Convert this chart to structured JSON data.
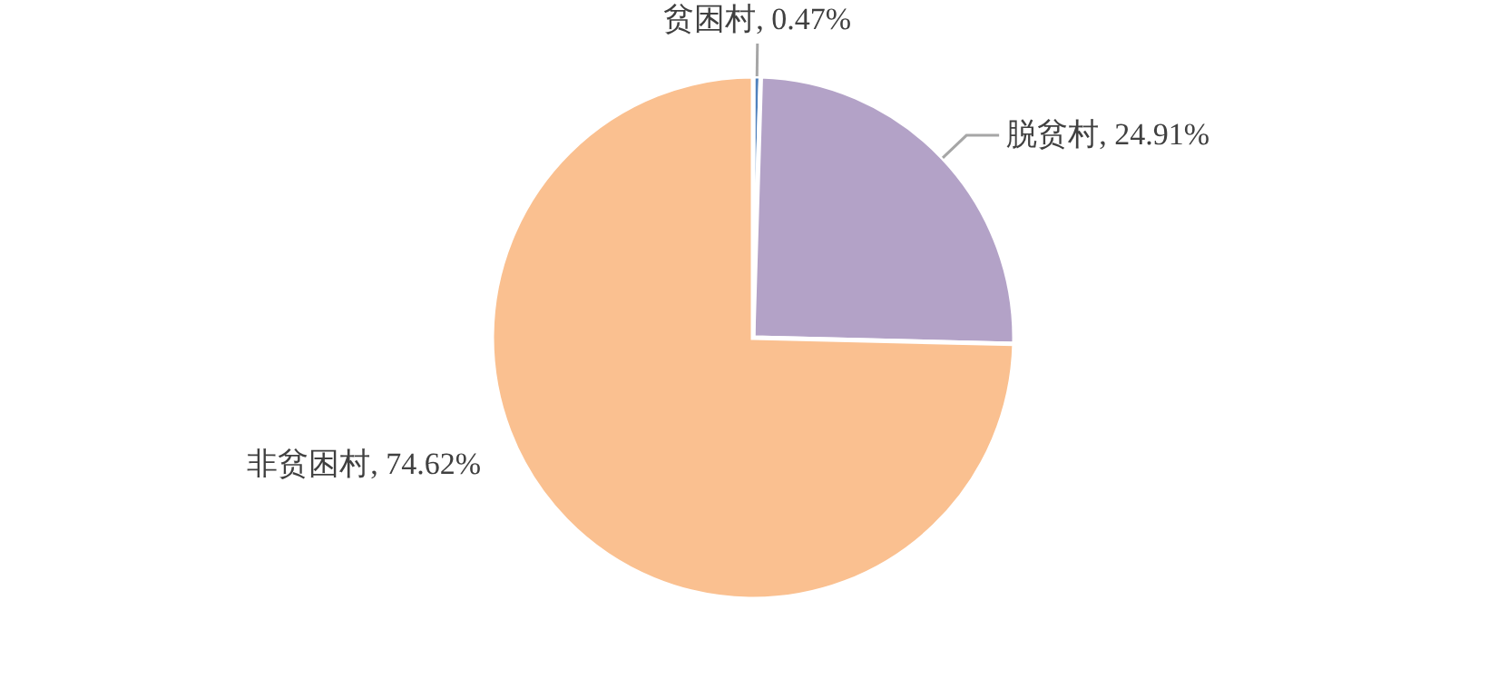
{
  "chart_data": {
    "type": "pie",
    "categories": [
      "贫困村",
      "脱贫村",
      "非贫困村"
    ],
    "values": [
      0.47,
      24.91,
      74.62
    ],
    "colors": [
      "#4f81bd",
      "#b3a2c7",
      "#fac090"
    ],
    "value_labels": [
      ", 0.47%",
      ", 24.91%",
      ", 74.62%"
    ]
  }
}
